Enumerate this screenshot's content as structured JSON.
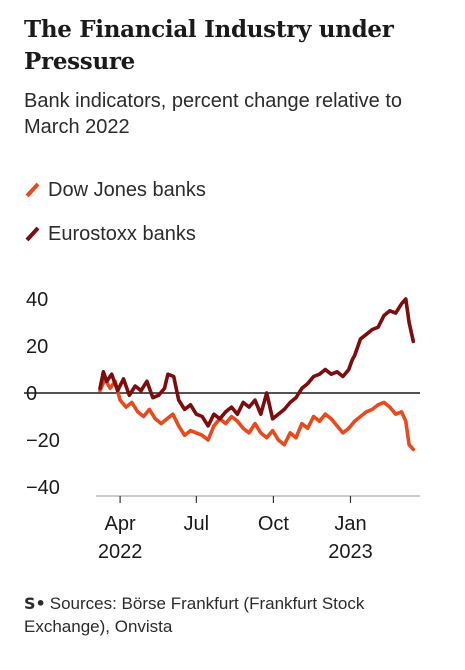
{
  "header": {
    "title": "The Financial Industry under Pressure",
    "subtitle": "Bank indicators, percent change relative to March 2022"
  },
  "footer": {
    "logo_text": "S•",
    "source": "Sources: Börse Frankfurt (Frankfurt Stock Exchange), Onvista"
  },
  "colors": {
    "dow": "#e8491d",
    "euro": "#7d0c0c",
    "zero_line": "#1a1a1a",
    "axis_text": "#1a1a1a"
  },
  "chart_data": {
    "type": "line",
    "title": "The Financial Industry under Pressure",
    "subtitle": "Bank indicators, percent change relative to March 2022",
    "xlabel": "",
    "ylabel": "",
    "ylim": [
      -45,
      45
    ],
    "xlim": [
      "2022-03-08",
      "2023-03-25"
    ],
    "y_ticks": [
      40,
      20,
      0,
      -20,
      -40
    ],
    "y_tick_labels": [
      "40",
      "20",
      "0",
      "−20",
      "−40"
    ],
    "x_ticks": [
      {
        "date": "2022-04-01",
        "label": "Apr",
        "year": "2022"
      },
      {
        "date": "2022-07-01",
        "label": "Jul",
        "year": ""
      },
      {
        "date": "2022-10-01",
        "label": "Oct",
        "year": ""
      },
      {
        "date": "2023-01-01",
        "label": "Jan",
        "year": "2023"
      }
    ],
    "grid": false,
    "legend_position": "top-left",
    "series": [
      {
        "name": "Dow Jones banks",
        "color": "#e8491d",
        "points": [
          [
            "2022-03-08",
            1
          ],
          [
            "2022-03-14",
            6
          ],
          [
            "2022-03-20",
            2
          ],
          [
            "2022-03-26",
            5
          ],
          [
            "2022-04-01",
            -3
          ],
          [
            "2022-04-08",
            -6
          ],
          [
            "2022-04-15",
            -4
          ],
          [
            "2022-04-22",
            -8
          ],
          [
            "2022-04-29",
            -10
          ],
          [
            "2022-05-06",
            -7
          ],
          [
            "2022-05-13",
            -11
          ],
          [
            "2022-05-20",
            -13
          ],
          [
            "2022-05-27",
            -11
          ],
          [
            "2022-06-03",
            -9
          ],
          [
            "2022-06-10",
            -14
          ],
          [
            "2022-06-17",
            -18
          ],
          [
            "2022-06-24",
            -16
          ],
          [
            "2022-07-01",
            -17
          ],
          [
            "2022-07-08",
            -18
          ],
          [
            "2022-07-15",
            -20
          ],
          [
            "2022-07-22",
            -14
          ],
          [
            "2022-07-29",
            -11
          ],
          [
            "2022-08-05",
            -13
          ],
          [
            "2022-08-12",
            -10
          ],
          [
            "2022-08-19",
            -12
          ],
          [
            "2022-08-26",
            -15
          ],
          [
            "2022-09-02",
            -17
          ],
          [
            "2022-09-09",
            -13
          ],
          [
            "2022-09-16",
            -17
          ],
          [
            "2022-09-23",
            -19
          ],
          [
            "2022-09-30",
            -16
          ],
          [
            "2022-10-07",
            -20
          ],
          [
            "2022-10-14",
            -22
          ],
          [
            "2022-10-21",
            -17
          ],
          [
            "2022-10-28",
            -19
          ],
          [
            "2022-11-04",
            -13
          ],
          [
            "2022-11-11",
            -15
          ],
          [
            "2022-11-18",
            -10
          ],
          [
            "2022-11-25",
            -12
          ],
          [
            "2022-12-02",
            -9
          ],
          [
            "2022-12-09",
            -11
          ],
          [
            "2022-12-16",
            -14
          ],
          [
            "2022-12-23",
            -17
          ],
          [
            "2022-12-30",
            -15
          ],
          [
            "2023-01-06",
            -12
          ],
          [
            "2023-01-13",
            -10
          ],
          [
            "2023-01-20",
            -8
          ],
          [
            "2023-01-27",
            -7
          ],
          [
            "2023-02-03",
            -5
          ],
          [
            "2023-02-10",
            -4
          ],
          [
            "2023-02-17",
            -6
          ],
          [
            "2023-02-24",
            -9
          ],
          [
            "2023-03-03",
            -8
          ],
          [
            "2023-03-08",
            -12
          ],
          [
            "2023-03-12",
            -22
          ],
          [
            "2023-03-17",
            -24
          ]
        ]
      },
      {
        "name": "Eurostoxx banks",
        "color": "#7d0c0c",
        "points": [
          [
            "2022-03-08",
            2
          ],
          [
            "2022-03-12",
            9
          ],
          [
            "2022-03-16",
            5
          ],
          [
            "2022-03-22",
            8
          ],
          [
            "2022-03-29",
            1
          ],
          [
            "2022-04-05",
            6
          ],
          [
            "2022-04-12",
            -1
          ],
          [
            "2022-04-19",
            3
          ],
          [
            "2022-04-26",
            1
          ],
          [
            "2022-05-03",
            5
          ],
          [
            "2022-05-10",
            -2
          ],
          [
            "2022-05-17",
            -1
          ],
          [
            "2022-05-24",
            2
          ],
          [
            "2022-05-28",
            8
          ],
          [
            "2022-06-04",
            7
          ],
          [
            "2022-06-10",
            -3
          ],
          [
            "2022-06-17",
            -7
          ],
          [
            "2022-06-24",
            -5
          ],
          [
            "2022-07-01",
            -9
          ],
          [
            "2022-07-08",
            -10
          ],
          [
            "2022-07-15",
            -14
          ],
          [
            "2022-07-22",
            -9
          ],
          [
            "2022-07-29",
            -11
          ],
          [
            "2022-08-05",
            -8
          ],
          [
            "2022-08-12",
            -6
          ],
          [
            "2022-08-19",
            -9
          ],
          [
            "2022-08-26",
            -4
          ],
          [
            "2022-09-02",
            -6
          ],
          [
            "2022-09-09",
            -3
          ],
          [
            "2022-09-16",
            -9
          ],
          [
            "2022-09-23",
            0
          ],
          [
            "2022-09-30",
            -11
          ],
          [
            "2022-10-07",
            -9
          ],
          [
            "2022-10-14",
            -7
          ],
          [
            "2022-10-21",
            -4
          ],
          [
            "2022-10-28",
            -2
          ],
          [
            "2022-11-04",
            2
          ],
          [
            "2022-11-11",
            4
          ],
          [
            "2022-11-18",
            7
          ],
          [
            "2022-11-25",
            8
          ],
          [
            "2022-12-02",
            10
          ],
          [
            "2022-12-09",
            8
          ],
          [
            "2022-12-16",
            9
          ],
          [
            "2022-12-23",
            7
          ],
          [
            "2022-12-30",
            10
          ],
          [
            "2023-01-03",
            14
          ],
          [
            "2023-01-06",
            16
          ],
          [
            "2023-01-13",
            23
          ],
          [
            "2023-01-20",
            25
          ],
          [
            "2023-01-27",
            27
          ],
          [
            "2023-02-03",
            28
          ],
          [
            "2023-02-10",
            33
          ],
          [
            "2023-02-17",
            35
          ],
          [
            "2023-02-24",
            34
          ],
          [
            "2023-03-03",
            38
          ],
          [
            "2023-03-08",
            40
          ],
          [
            "2023-03-12",
            30
          ],
          [
            "2023-03-17",
            22
          ]
        ]
      }
    ]
  }
}
